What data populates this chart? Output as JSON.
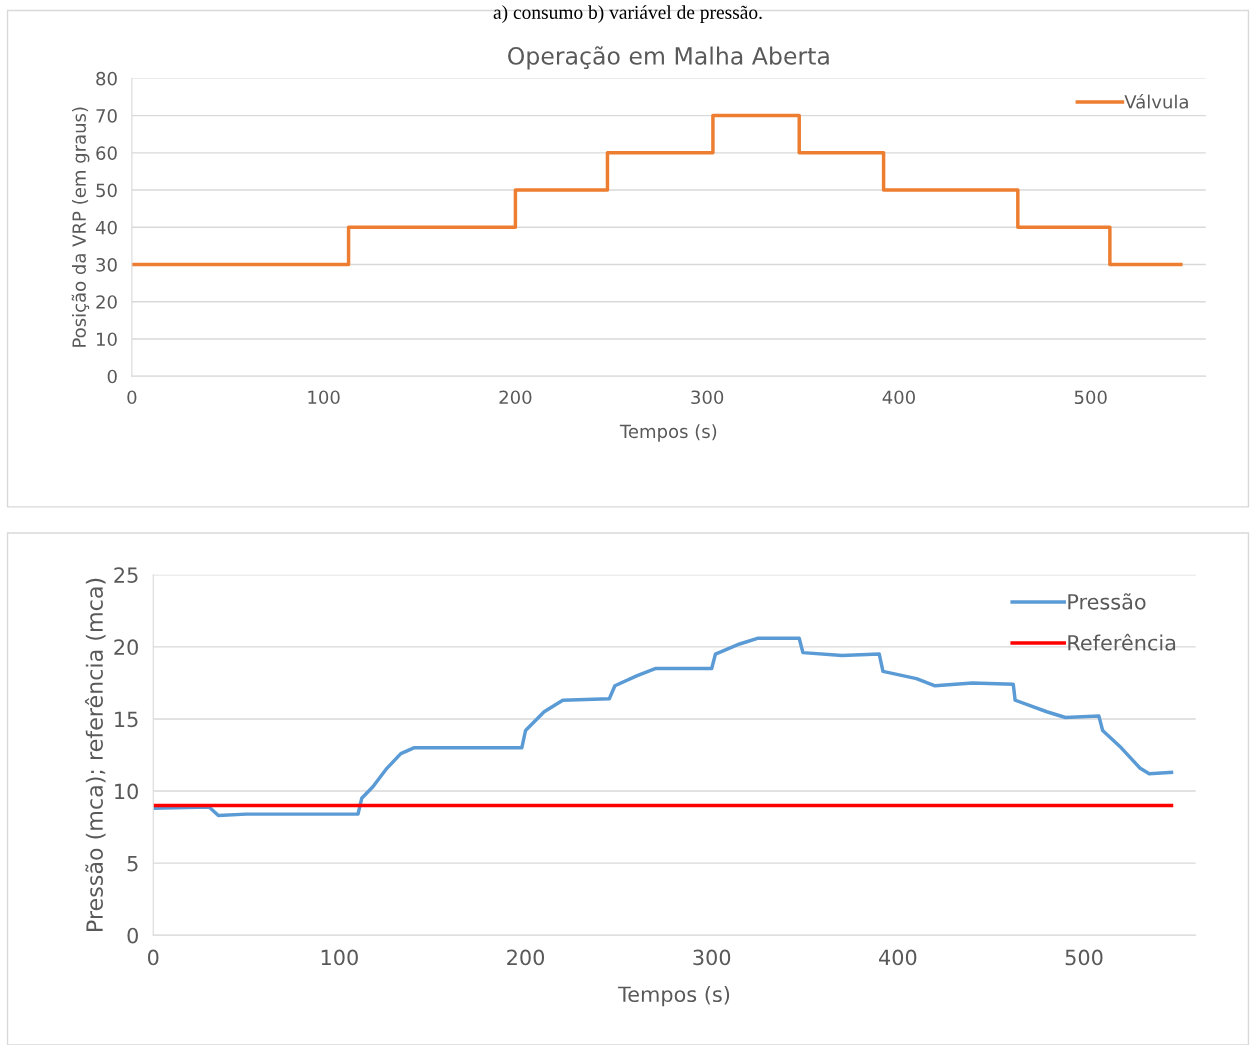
{
  "chart_data": [
    {
      "type": "step",
      "title": "Operação em Malha Aberta",
      "xlabel": "Tempos (s)",
      "ylabel": "Posição da VRP (em graus)",
      "annotations": [
        "a) consumo b) variável de pressão."
      ],
      "xlim": [
        0,
        560
      ],
      "xticks": [
        0,
        100,
        200,
        300,
        400,
        500
      ],
      "ylim": [
        0,
        80
      ],
      "yticks": [
        0,
        10,
        20,
        30,
        40,
        50,
        60,
        70,
        80
      ],
      "grid": "y",
      "legend": "top right",
      "series": [
        {
          "name": "Válvula",
          "color": "#ed7d31",
          "x": [
            0,
            113,
            200,
            248,
            303,
            348,
            392,
            462,
            510,
            547
          ],
          "values": [
            30,
            40,
            50,
            60,
            70,
            60,
            50,
            40,
            30,
            30
          ]
        }
      ]
    },
    {
      "type": "line",
      "xlabel": "Tempos (s)",
      "ylabel": "Pressão (mca); referência (mca)",
      "xlim": [
        0,
        560
      ],
      "xticks": [
        0,
        100,
        200,
        300,
        400,
        500
      ],
      "ylim": [
        0,
        25
      ],
      "yticks": [
        0,
        5,
        10,
        15,
        20,
        25
      ],
      "grid": "y",
      "legend": "top right",
      "series": [
        {
          "name": "Pressão",
          "color": "#5b9bd5",
          "x": [
            0,
            30,
            35,
            50,
            80,
            110,
            112,
            118,
            125,
            133,
            140,
            170,
            198,
            200,
            210,
            220,
            245,
            248,
            260,
            270,
            300,
            302,
            315,
            325,
            347,
            349,
            370,
            390,
            392,
            410,
            420,
            440,
            462,
            463,
            480,
            490,
            508,
            510,
            520,
            530,
            535,
            547
          ],
          "values": [
            8.8,
            8.9,
            8.3,
            8.4,
            8.4,
            8.4,
            9.5,
            10.3,
            11.5,
            12.6,
            13.0,
            13.0,
            13.0,
            14.2,
            15.5,
            16.3,
            16.4,
            17.3,
            18.0,
            18.5,
            18.5,
            19.5,
            20.2,
            20.6,
            20.6,
            19.6,
            19.4,
            19.5,
            18.3,
            17.8,
            17.3,
            17.5,
            17.4,
            16.3,
            15.5,
            15.1,
            15.2,
            14.2,
            13.0,
            11.6,
            11.2,
            11.3
          ]
        },
        {
          "name": "Referência",
          "color": "#ff0000",
          "x": [
            0,
            547
          ],
          "values": [
            9,
            9
          ]
        }
      ]
    }
  ]
}
